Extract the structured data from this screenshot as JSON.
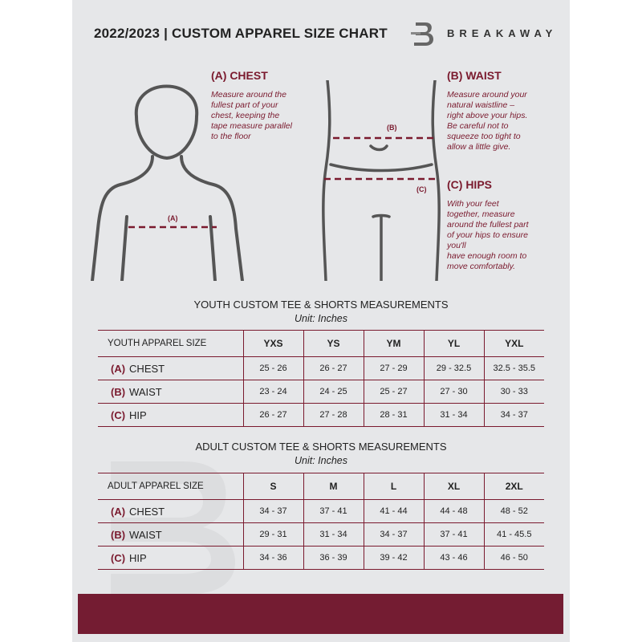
{
  "header": {
    "title": "2022/2023  |  CUSTOM APPAREL SIZE CHART",
    "brand": "BREAKAWAY",
    "logo_letter": "B"
  },
  "chest": {
    "heading": "(A) CHEST",
    "text": "Measure around the\nfullest part of your\nchest, keeping the\ntape measure parallel\nto the floor",
    "marker": "(A)"
  },
  "waist": {
    "heading": "(B) WAIST",
    "text": "Measure around your\nnatural waistline –\nright above your hips.\nBe careful not to\nsqueeze too tight to\nallow a little give.",
    "marker": "(B)"
  },
  "hips": {
    "heading": "(C) HIPS",
    "text": "With your feet\ntogether, measure\naround the fullest part\nof your hips to ensure\nyou'll\nhave enough room to\nmove comfortably.",
    "marker": "(C)"
  },
  "youth": {
    "title": "YOUTH CUSTOM TEE & SHORTS MEASUREMENTS",
    "unit": "Unit: Inches",
    "header": [
      "YOUTH APPAREL SIZE",
      "YXS",
      "YS",
      "YM",
      "YL",
      "YXL"
    ],
    "rows": [
      {
        "code": "(A)",
        "label": "CHEST",
        "values": [
          "25 - 26",
          "26 - 27",
          "27 - 29",
          "29 - 32.5",
          "32.5 - 35.5"
        ]
      },
      {
        "code": "(B)",
        "label": "WAIST",
        "values": [
          "23 - 24",
          "24 - 25",
          "25 - 27",
          "27 - 30",
          "30 - 33"
        ]
      },
      {
        "code": "(C)",
        "label": "HIP",
        "values": [
          "26 - 27",
          "27 - 28",
          "28 - 31",
          "31 - 34",
          "34 - 37"
        ]
      }
    ]
  },
  "adult": {
    "title": "ADULT CUSTOM TEE & SHORTS MEASUREMENTS",
    "unit": "Unit: Inches",
    "header": [
      "ADULT APPAREL SIZE",
      "S",
      "M",
      "L",
      "XL",
      "2XL"
    ],
    "rows": [
      {
        "code": "(A)",
        "label": "CHEST",
        "values": [
          "34 - 37",
          "37 - 41",
          "41 - 44",
          "44 - 48",
          "48 - 52"
        ]
      },
      {
        "code": "(B)",
        "label": "WAIST",
        "values": [
          "29 - 31",
          "31 - 34",
          "34 - 37",
          "37 - 41",
          "41 - 45.5"
        ]
      },
      {
        "code": "(C)",
        "label": "HIP",
        "values": [
          "34 - 36",
          "36 - 39",
          "39 - 42",
          "43 - 46",
          "46 - 50"
        ]
      }
    ]
  },
  "colors": {
    "accent": "#7a1a2e",
    "footer": "#741c32",
    "background": "#e6e7e9"
  }
}
